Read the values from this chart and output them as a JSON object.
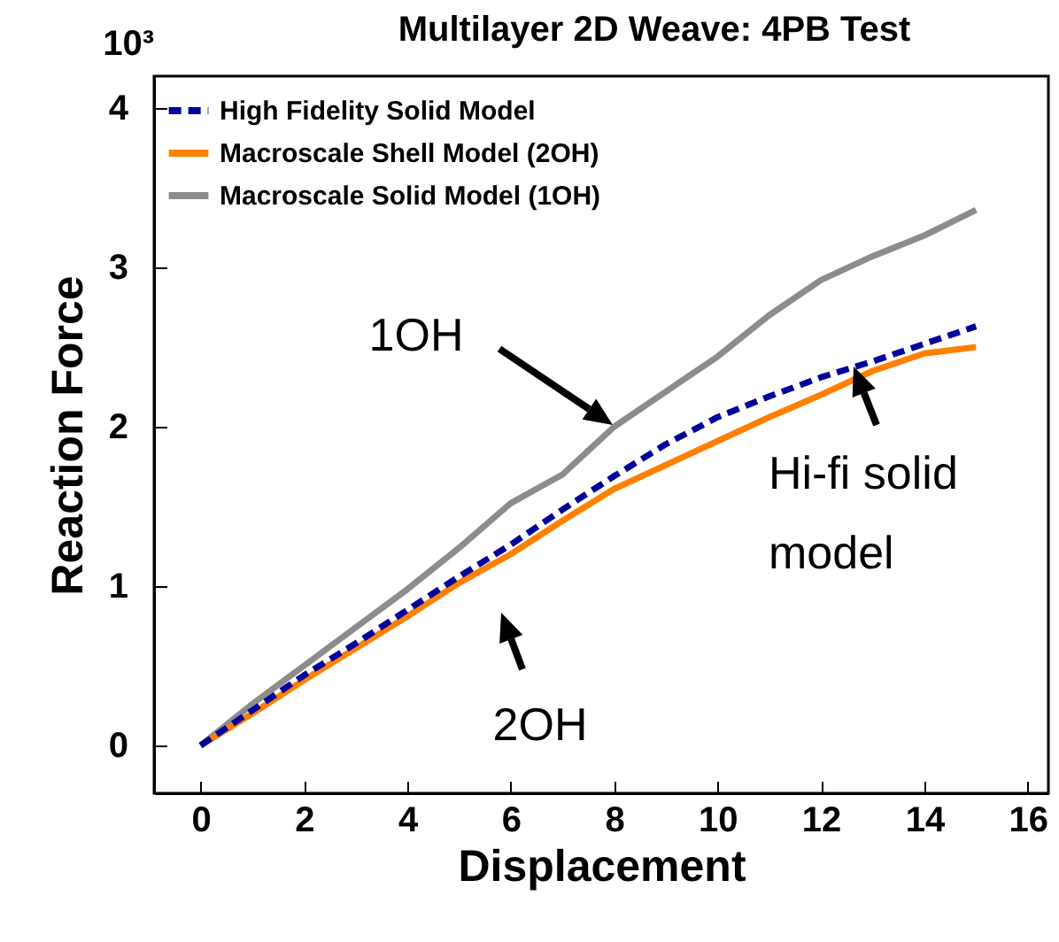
{
  "chart_data": {
    "type": "line",
    "title": "Multilayer 2D Weave: 4PB Test",
    "xlabel": "Displacement",
    "ylabel": "Reaction Force",
    "x": [
      0,
      1,
      2,
      3,
      4,
      5,
      6,
      7,
      8,
      9,
      10,
      11,
      12,
      13,
      14,
      15
    ],
    "series": [
      {
        "name": "High Fidelity Solid Model",
        "color": "#00009c",
        "line_style": "dashed",
        "values": [
          0,
          0.22,
          0.44,
          0.64,
          0.85,
          1.06,
          1.26,
          1.48,
          1.69,
          1.89,
          2.06,
          2.19,
          2.31,
          2.41,
          2.52,
          2.63
        ]
      },
      {
        "name": "Macroscale Shell Model (2OH)",
        "color": "#ff8000",
        "line_style": "solid",
        "values": [
          0,
          0.2,
          0.41,
          0.61,
          0.81,
          1.02,
          1.2,
          1.41,
          1.61,
          1.76,
          1.91,
          2.06,
          2.2,
          2.35,
          2.46,
          2.5
        ]
      },
      {
        "name": "Macroscale Solid Model (1OH)",
        "color": "#8c8c8c",
        "line_style": "solid",
        "values": [
          0,
          0.26,
          0.5,
          0.74,
          0.98,
          1.24,
          1.52,
          1.7,
          2.0,
          2.22,
          2.44,
          2.7,
          2.92,
          3.07,
          3.2,
          3.36
        ]
      }
    ],
    "xlim": [
      -0.9,
      16.4
    ],
    "xticks": [
      0,
      2,
      4,
      6,
      8,
      10,
      12,
      14,
      16
    ],
    "ylim": [
      -0.3,
      4.2
    ],
    "yticks": [
      0,
      1,
      2,
      3,
      4
    ],
    "tick_labels": "xy",
    "legend": "top left",
    "grid": false,
    "annotations": [
      "10³",
      "1OH",
      "2OH",
      "Hi-fi solid\nmodel"
    ]
  }
}
